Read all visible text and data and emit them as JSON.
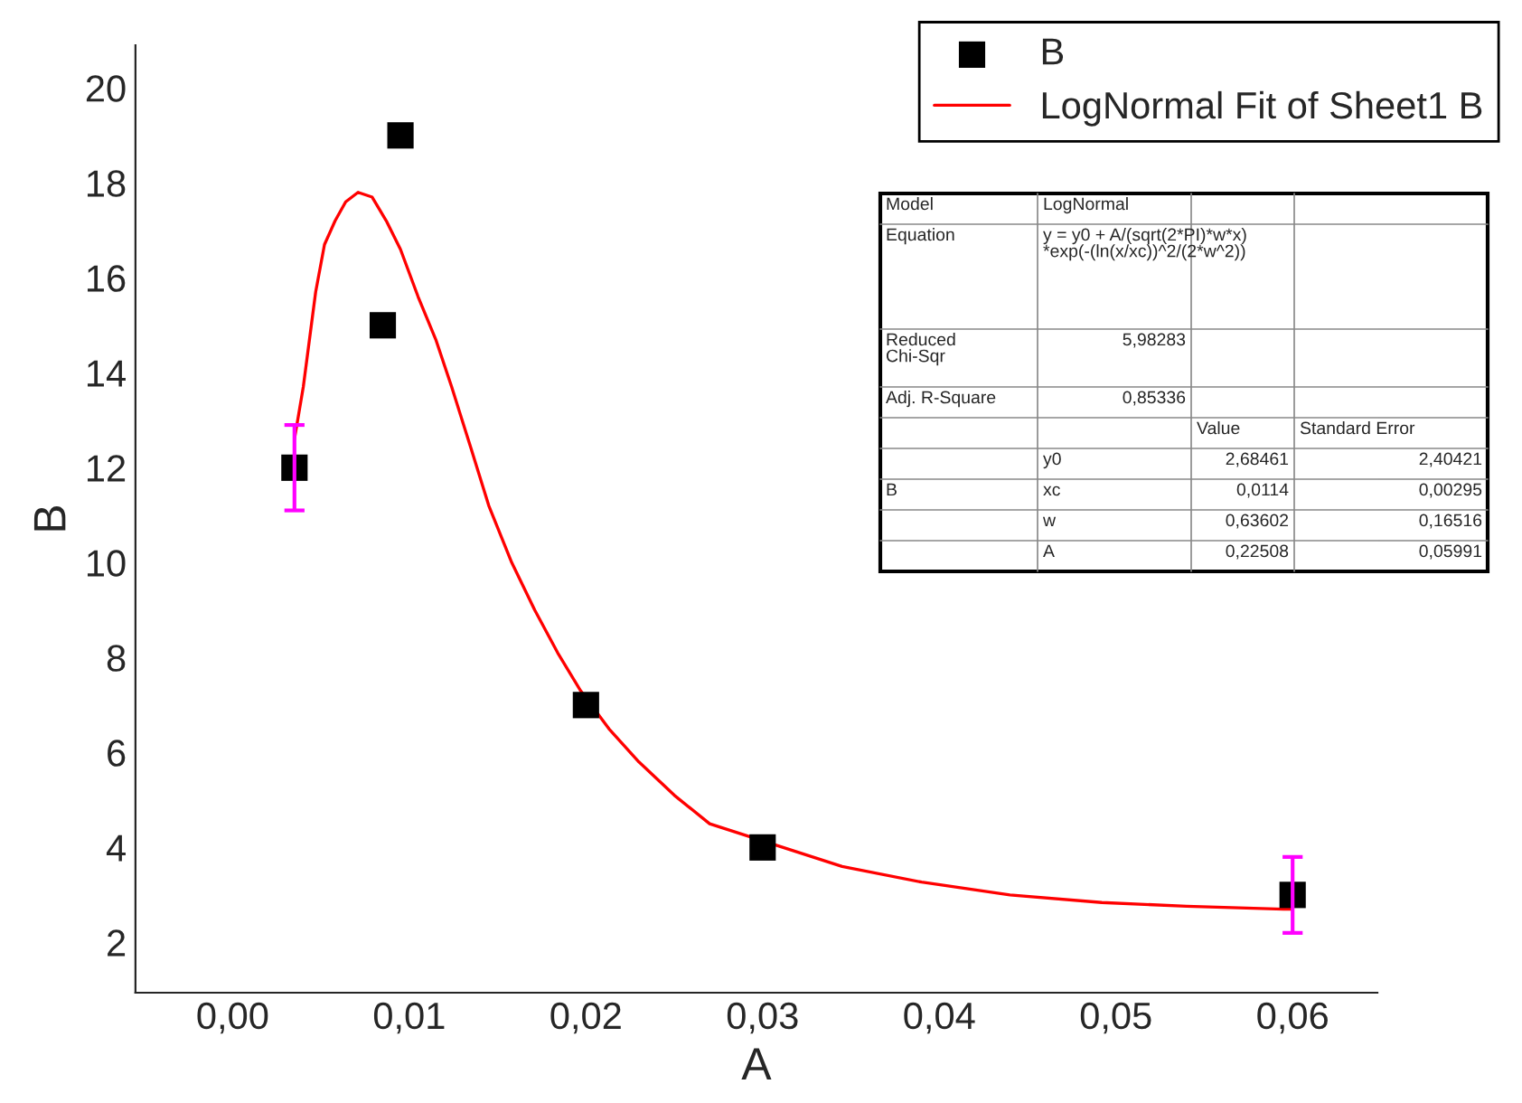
{
  "chart_data": {
    "type": "scatter",
    "xlabel": "A",
    "ylabel": "B",
    "xlim": [
      -0.0055,
      0.0648
    ],
    "ylim": [
      0.94,
      20.9
    ],
    "xticks": [
      {
        "value": 0,
        "label": "0,00"
      },
      {
        "value": 0.01,
        "label": "0,01"
      },
      {
        "value": 0.02,
        "label": "0,02"
      },
      {
        "value": 0.03,
        "label": "0,03"
      },
      {
        "value": 0.04,
        "label": "0,04"
      },
      {
        "value": 0.05,
        "label": "0,05"
      },
      {
        "value": 0.06,
        "label": "0,06"
      }
    ],
    "yticks": [
      2,
      4,
      6,
      8,
      10,
      12,
      14,
      16,
      18,
      20
    ],
    "grid": false,
    "legend": "top right",
    "series": [
      {
        "name": "B",
        "marker": "square",
        "color": "#000000",
        "x": [
          0.0035,
          0.0085,
          0.0095,
          0.02,
          0.03,
          0.06
        ],
        "values": [
          12,
          15,
          19,
          7,
          4,
          3
        ],
        "errors": [
          0.9,
          null,
          null,
          null,
          null,
          0.8
        ]
      },
      {
        "name": "LogNormal Fit of Sheet1 B",
        "type": "line",
        "marker": "none",
        "line_style": "solid",
        "color": "#ff0000",
        "x": [
          0.0035,
          0.004,
          0.0047,
          0.0052,
          0.0058,
          0.0064,
          0.0071,
          0.0079,
          0.0087,
          0.0095,
          0.0105,
          0.0115,
          0.0124,
          0.0135,
          0.0145,
          0.0158,
          0.0171,
          0.0184,
          0.0197,
          0.0213,
          0.023,
          0.025,
          0.027,
          0.0345,
          0.039,
          0.044,
          0.0492,
          0.054,
          0.0595,
          0.06
        ],
        "values": [
          12.6,
          13.7,
          15.7,
          16.7,
          17.2,
          17.6,
          17.8,
          17.7,
          17.2,
          16.6,
          15.6,
          14.7,
          13.7,
          12.4,
          11.2,
          10.0,
          9.0,
          8.1,
          7.3,
          6.5,
          5.8,
          5.1,
          4.5,
          3.6,
          3.27,
          3.0,
          2.84,
          2.76,
          2.7,
          2.7
        ]
      }
    ],
    "annotations": [
      "Model",
      "LogNormal",
      "Equation",
      "y = y0 + A/(sqrt(2*PI)*w*x)\n*exp(-(ln(x/xc))^2/(2*w^2))",
      "Reduced\nChi-Sqr",
      "5,98283",
      "Adj. R-Square",
      "0,85336",
      "Value",
      "Standard Error",
      "B",
      "y0",
      "2,68461",
      "2,40421",
      "xc",
      "0,0114",
      "0,00295",
      "w",
      "0,63602",
      "0,16516",
      "A",
      "0,22508",
      "0,05991"
    ]
  }
}
